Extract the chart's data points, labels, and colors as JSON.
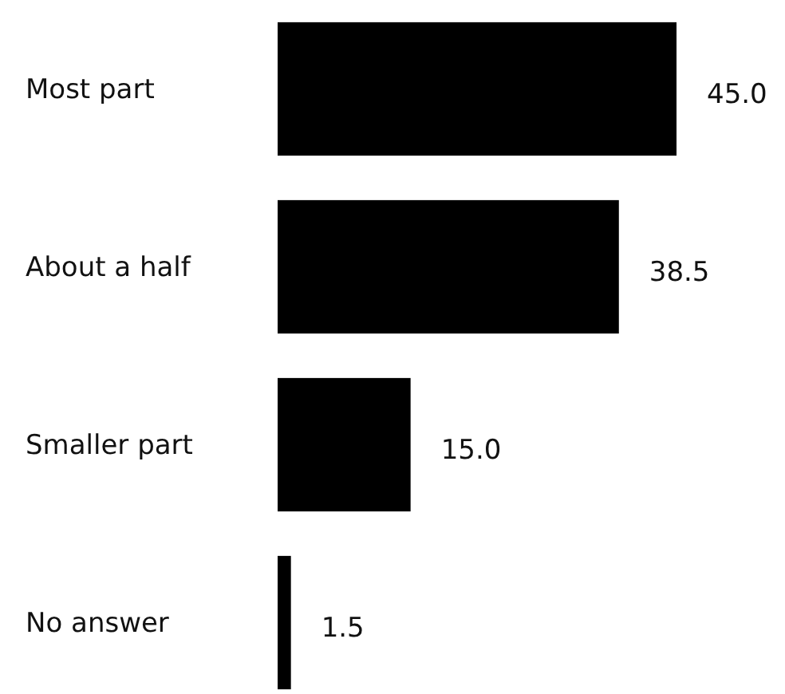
{
  "chart_data": {
    "type": "bar",
    "orientation": "horizontal",
    "categories": [
      "Most part",
      "About a half",
      "Smaller part",
      "No answer"
    ],
    "values": [
      45.0,
      38.5,
      15.0,
      1.5
    ],
    "color": "#000000",
    "value_labels": [
      "45.0",
      "38.5",
      "15.0",
      "1.5"
    ]
  }
}
